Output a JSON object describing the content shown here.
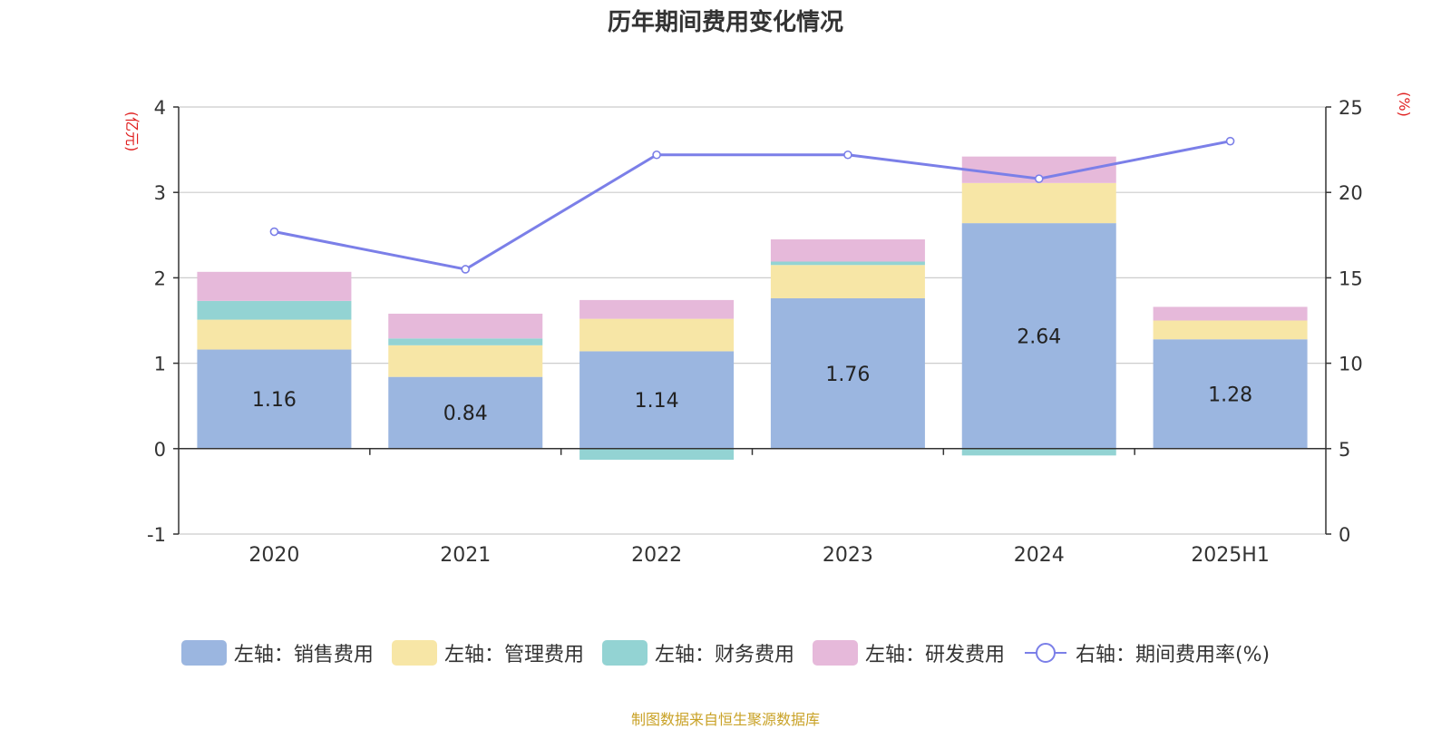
{
  "chart_data": {
    "type": "bar",
    "title": "历年期间费用变化情况",
    "categories": [
      "2020",
      "2021",
      "2022",
      "2023",
      "2024",
      "2025H1"
    ],
    "y_left": {
      "unit_label": "(亿元)",
      "ylim": [
        -1,
        4
      ],
      "ticks": [
        -1,
        0,
        1,
        2,
        3,
        4
      ]
    },
    "y_right": {
      "unit_label": "(%)",
      "ylim": [
        0,
        25
      ],
      "ticks": [
        0,
        5,
        10,
        15,
        20,
        25
      ]
    },
    "series": [
      {
        "name": "左轴：销售费用",
        "type": "bar",
        "axis": "left",
        "color": "#9bb6e0",
        "values": [
          1.16,
          0.84,
          1.14,
          1.76,
          2.64,
          1.28
        ],
        "labels": [
          "1.16",
          "0.84",
          "1.14",
          "1.76",
          "2.64",
          "1.28"
        ]
      },
      {
        "name": "左轴：管理费用",
        "type": "bar",
        "axis": "left",
        "color": "#f7e6a6",
        "values": [
          0.35,
          0.37,
          0.38,
          0.39,
          0.47,
          0.22
        ]
      },
      {
        "name": "左轴：财务费用",
        "type": "bar",
        "axis": "left",
        "color": "#93d3d3",
        "values": [
          0.22,
          0.08,
          -0.13,
          0.04,
          -0.08,
          0.0
        ]
      },
      {
        "name": "左轴：研发费用",
        "type": "bar",
        "axis": "left",
        "color": "#e6b9da",
        "values": [
          0.34,
          0.29,
          0.22,
          0.26,
          0.31,
          0.16
        ]
      },
      {
        "name": "右轴：期间费用率(%)",
        "type": "line",
        "axis": "right",
        "color": "#7b7fe8",
        "values": [
          17.7,
          15.5,
          22.2,
          22.2,
          20.8,
          23.0
        ]
      }
    ],
    "grid": true,
    "legend": "bottom"
  },
  "source": "制图数据来自恒生聚源数据库"
}
